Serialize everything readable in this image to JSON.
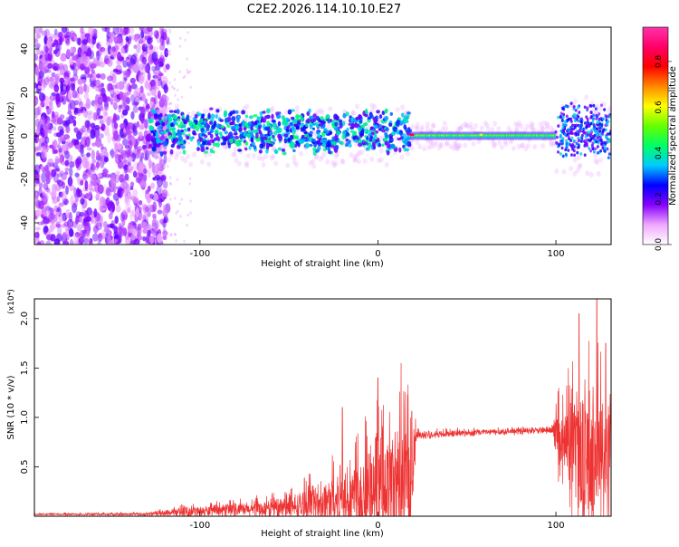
{
  "title": "C2E2.2026.114.10.10.E27",
  "chart_data": [
    {
      "type": "heatmap",
      "xlabel": "Height of straight line (km)",
      "ylabel": "Frequency (Hz)",
      "xlim": [
        -193,
        131
      ],
      "ylim": [
        -50,
        50
      ],
      "xticks": [
        -100,
        0,
        100
      ],
      "yticks": [
        -40,
        -20,
        0,
        20,
        40
      ],
      "colorbar": {
        "label": "Normalized spectral amplitude",
        "range": [
          0,
          0.95
        ],
        "ticks": [
          0.0,
          0.2,
          0.4,
          0.6,
          0.8
        ],
        "tick_labels": [
          "0.0",
          "0.2",
          "0.4",
          "0.6",
          "0.8"
        ],
        "colormap": [
          "#ffffff",
          "#f0a8ff",
          "#8800ff",
          "#0000ff",
          "#00ccff",
          "#00ff66",
          "#66ff00",
          "#ffff00",
          "#ff8800",
          "#ff0000",
          "#ff0066",
          "#ff33aa"
        ]
      },
      "grid": false
    },
    {
      "type": "line",
      "xlabel": "Height of straight line (km)",
      "ylabel": "SNR (10 * v/v)",
      "y_multiplier": "(x10⁴)",
      "xlim": [
        -193,
        131
      ],
      "ylim": [
        0,
        2.2
      ],
      "xticks": [
        -100,
        0,
        100
      ],
      "yticks": [
        0.5,
        1.0,
        1.5,
        2.0
      ],
      "ytick_labels": [
        "0.5",
        "1.0",
        "1.5",
        "2.0"
      ],
      "line_color": "#ee3333",
      "profile": [
        {
          "x": -193,
          "base": 0.02,
          "amp": 0.01
        },
        {
          "x": -130,
          "base": 0.02,
          "amp": 0.02
        },
        {
          "x": -110,
          "base": 0.04,
          "amp": 0.06
        },
        {
          "x": -80,
          "base": 0.06,
          "amp": 0.08
        },
        {
          "x": -50,
          "base": 0.08,
          "amp": 0.14
        },
        {
          "x": -30,
          "base": 0.14,
          "amp": 0.3
        },
        {
          "x": -10,
          "base": 0.22,
          "amp": 0.55
        },
        {
          "x": 10,
          "base": 0.3,
          "amp": 0.8
        },
        {
          "x": 18,
          "base": 0.35,
          "amp": 0.9
        },
        {
          "x": 22,
          "base": 0.82,
          "amp": 0.05
        },
        {
          "x": 60,
          "base": 0.85,
          "amp": 0.04
        },
        {
          "x": 98,
          "base": 0.87,
          "amp": 0.04
        },
        {
          "x": 102,
          "base": 0.7,
          "amp": 0.5
        },
        {
          "x": 115,
          "base": 0.6,
          "amp": 0.9
        },
        {
          "x": 131,
          "base": 0.55,
          "amp": 0.9
        }
      ],
      "peaks": [
        {
          "x": 0,
          "y": 1.4
        },
        {
          "x": 13,
          "y": 1.55
        },
        {
          "x": -20,
          "y": 1.1
        },
        {
          "x": 113,
          "y": 2.05
        },
        {
          "x": 123,
          "y": 2.2
        },
        {
          "x": 128,
          "y": 1.75
        }
      ],
      "grid": false
    }
  ]
}
